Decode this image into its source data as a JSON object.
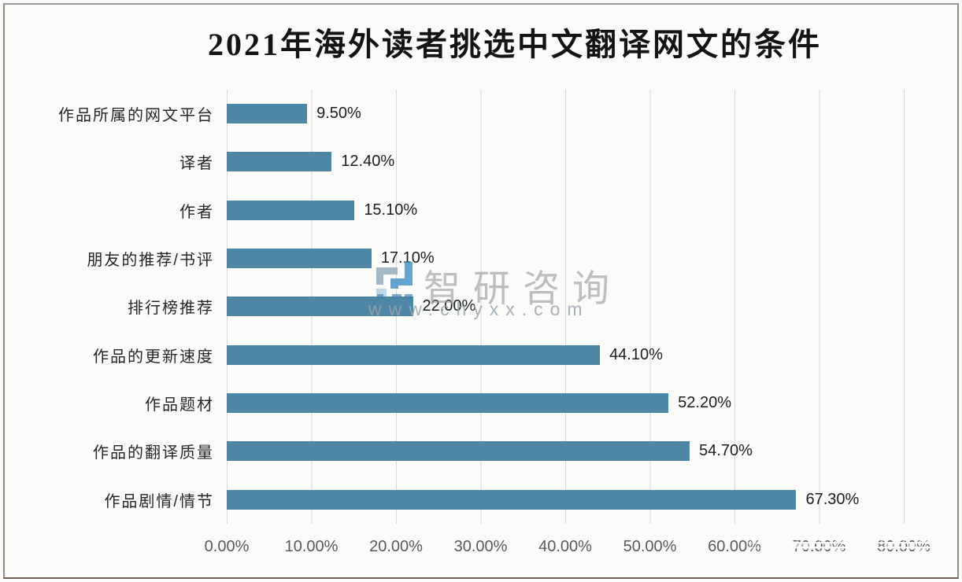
{
  "title": "2021年海外读者挑选中文翻译网文的条件",
  "chart_data": {
    "type": "bar",
    "orientation": "horizontal",
    "title": "2021年海外读者挑选中文翻译网文的条件",
    "categories": [
      "作品所属的网文平台",
      "译者",
      "作者",
      "朋友的推荐/书评",
      "排行榜推荐",
      "作品的更新速度",
      "作品题材",
      "作品的翻译质量",
      "作品剧情/情节"
    ],
    "values": [
      9.5,
      12.4,
      15.1,
      17.1,
      22.0,
      44.1,
      52.2,
      54.7,
      67.3
    ],
    "value_labels": [
      "9.50%",
      "12.40%",
      "15.10%",
      "17.10%",
      "22.00%",
      "44.10%",
      "52.20%",
      "54.70%",
      "67.30%"
    ],
    "xlim": [
      0,
      80
    ],
    "x_ticks": [
      "0.00%",
      "10.00%",
      "20.00%",
      "30.00%",
      "40.00%",
      "50.00%",
      "60.00%",
      "70.00%",
      "80.00%"
    ],
    "xlabel": "",
    "ylabel": "",
    "grid": true,
    "legend": false,
    "bar_color": "#4e87a5",
    "grid_color": "#d7d7d7"
  },
  "watermark": {
    "brand": "智研咨询",
    "url": "www.chyxx.com",
    "logo_icon": "zhiyan-logo",
    "logo_color_dark": "#4a97c8",
    "logo_color_gray": "#97adbc",
    "logo_color_light": "#b5d3e6"
  }
}
